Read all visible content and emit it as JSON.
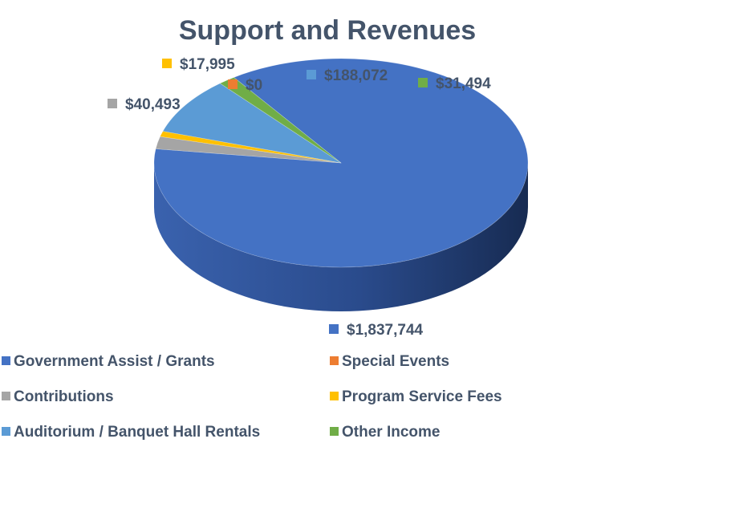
{
  "chart_data": {
    "type": "pie",
    "title": "Support and Revenues",
    "categories": [
      "Government Assist / Grants",
      "Special Events",
      "Contributions",
      "Program Service Fees",
      "Auditorium / Banquet Hall Rentals",
      "Other Income"
    ],
    "values": [
      1837744,
      0,
      40493,
      17995,
      188072,
      31494
    ],
    "data_labels": [
      "$1,837,744",
      "$0",
      "$40,493",
      "$17,995",
      "$188,072",
      "$31,494"
    ],
    "colors": [
      "#4472C4",
      "#ED7D31",
      "#A5A5A5",
      "#FFC000",
      "#5B9BD5",
      "#70AD47"
    ],
    "style": "3d-pie",
    "legend_position": "bottom"
  }
}
